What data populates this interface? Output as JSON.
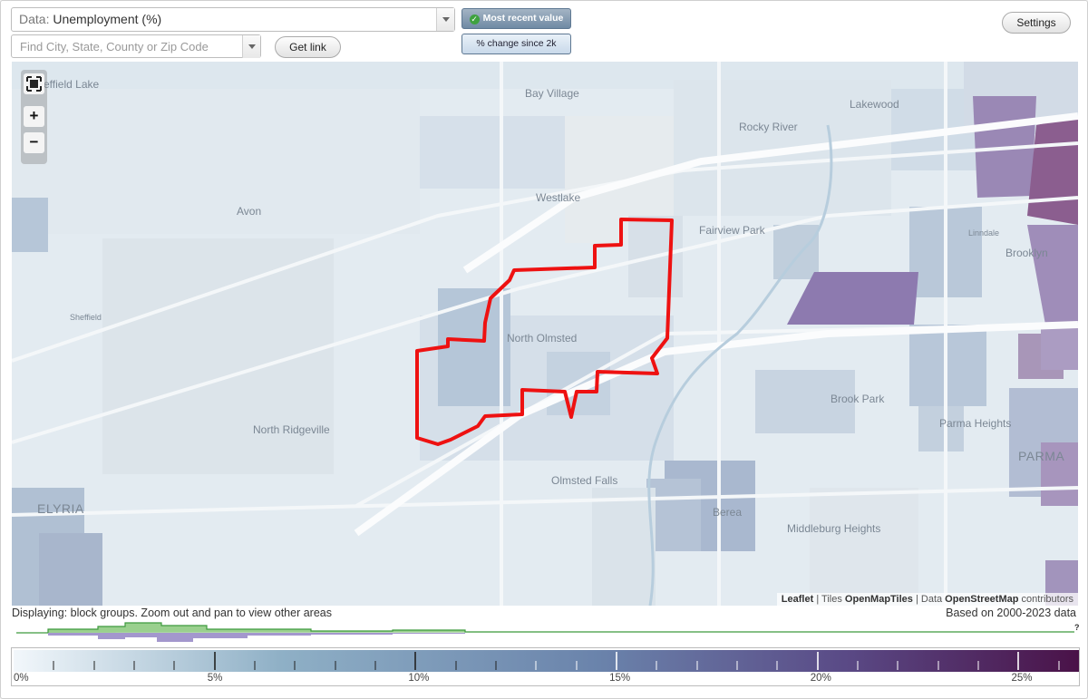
{
  "controls": {
    "data_prefix": "Data:",
    "data_value": "Unemployment (%)",
    "search_placeholder": "Find City, State, County or Zip Code",
    "get_link_label": "Get link",
    "most_recent_label": "Most recent value",
    "pct_change_label": "% change since 2k",
    "settings_label": "Settings"
  },
  "map": {
    "zoom_in": "+",
    "zoom_out": "−",
    "places": [
      {
        "name": "effield Lake",
        "cls": ""
      },
      {
        "name": "Bay Village",
        "cls": ""
      },
      {
        "name": "Lakewood",
        "cls": ""
      },
      {
        "name": "Rocky River",
        "cls": ""
      },
      {
        "name": "Westlake",
        "cls": ""
      },
      {
        "name": "Avon",
        "cls": ""
      },
      {
        "name": "Fairview Park",
        "cls": ""
      },
      {
        "name": "Linndale",
        "cls": "small"
      },
      {
        "name": "Brooklyn",
        "cls": ""
      },
      {
        "name": "Sheffield",
        "cls": "small"
      },
      {
        "name": "North Olmsted",
        "cls": ""
      },
      {
        "name": "Brook Park",
        "cls": ""
      },
      {
        "name": "North Ridgeville",
        "cls": ""
      },
      {
        "name": "Parma Heights",
        "cls": ""
      },
      {
        "name": "PARMA",
        "cls": "big"
      },
      {
        "name": "Olmsted Falls",
        "cls": ""
      },
      {
        "name": "ELYRIA",
        "cls": "big"
      },
      {
        "name": "Berea",
        "cls": ""
      },
      {
        "name": "Middleburg Heights",
        "cls": ""
      }
    ],
    "attribution": {
      "leaflet": "Leaflet",
      "sep1": " | Tiles ",
      "tiles": "OpenMapTiles",
      "sep2": " | Data ",
      "data": "OpenStreetMap",
      "tail": " contributors"
    }
  },
  "status_text": "Displaying: block groups. Zoom out and pan to view other areas",
  "based_on": "Based on 2000-2023 data",
  "histogram_question": "?",
  "legend": {
    "colors": [
      "#f2f7fb",
      "#8fb0c6",
      "#6a83ab",
      "#5a4a86",
      "#4a1248"
    ],
    "max_value": 26.5,
    "labels": [
      "0%",
      "5%",
      "10%",
      "15%",
      "20%",
      "25%"
    ]
  }
}
